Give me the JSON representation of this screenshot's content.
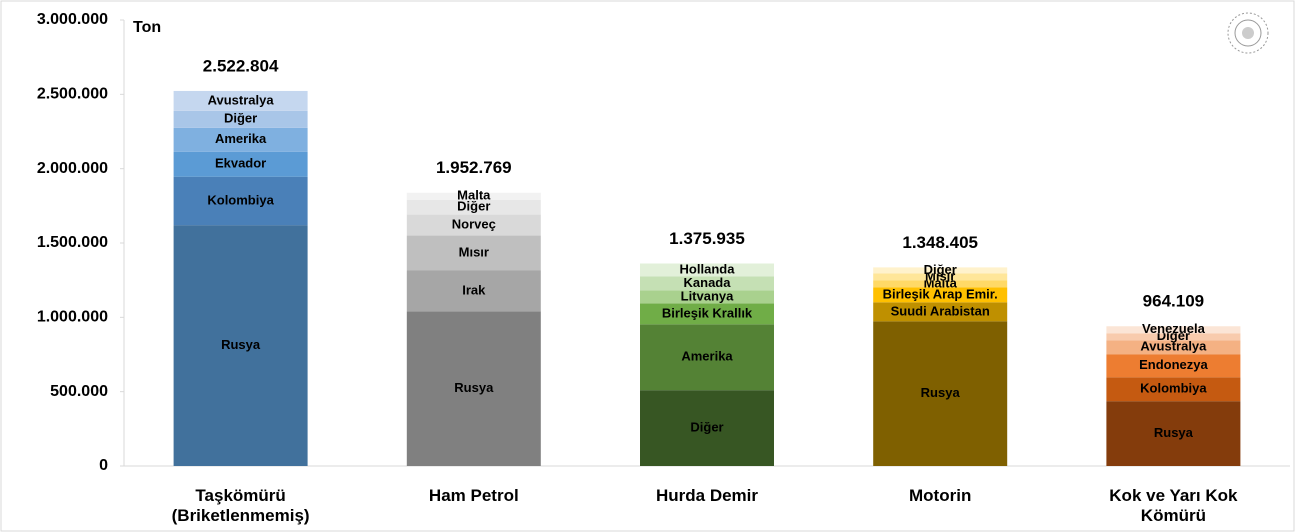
{
  "chart_data": {
    "type": "stacked_bar",
    "y_label": "Ton",
    "ylim": [
      0,
      3000000
    ],
    "yticks": [
      0,
      {
        "value": 500000,
        "label": "500.000"
      },
      {
        "value": 1000000,
        "label": "1.000.000"
      },
      {
        "value": 1500000,
        "label": "1.500.000"
      },
      {
        "value": 2000000,
        "label": "2.000.000"
      },
      {
        "value": 2500000,
        "label": "2.500.000"
      },
      {
        "value": 3000000,
        "label": "3.000.000"
      }
    ],
    "stacks": [
      {
        "category": "Taşkömürü (Briketlenmemiş)",
        "total": 2522804,
        "total_label": "2.522.804",
        "segments": [
          {
            "name": "Rusya",
            "value": 1620000,
            "color": "#41719c"
          },
          {
            "name": "Kolombiya",
            "value": 326000,
            "color": "#4a80b8"
          },
          {
            "name": "Ekvador",
            "value": 168000,
            "color": "#5b9bd5"
          },
          {
            "name": "Amerika",
            "value": 161000,
            "color": "#7fb0e0"
          },
          {
            "name": "Diğer",
            "value": 114000,
            "color": "#a9c6e8"
          },
          {
            "name": "Avustralya",
            "value": 133804,
            "color": "#c5d7ef"
          }
        ]
      },
      {
        "category": "Ham Petrol",
        "total": 1952769,
        "total_label": "1.952.769",
        "segments": [
          {
            "name": "Rusya",
            "value": 1040000,
            "color": "#808080"
          },
          {
            "name": "Irak",
            "value": 275000,
            "color": "#a6a6a6"
          },
          {
            "name": "Mısır",
            "value": 235000,
            "color": "#bfbfbf"
          },
          {
            "name": "Norveç",
            "value": 141000,
            "color": "#d9d9d9"
          },
          {
            "name": "Diğer",
            "value": 100000,
            "color": "#e7e7e7"
          },
          {
            "name": "Malta",
            "value": 47000,
            "color": "#f2f2f2"
          }
        ]
      },
      {
        "category": "Hurda Demir",
        "total": 1375935,
        "total_label": "1.375.935",
        "segments": [
          {
            "name": "Diğer",
            "value": 510000,
            "color": "#375623"
          },
          {
            "name": "Amerika",
            "value": 443000,
            "color": "#548235"
          },
          {
            "name": "Birleşik Krallık",
            "value": 141000,
            "color": "#70ad47"
          },
          {
            "name": "Litvanya",
            "value": 87000,
            "color": "#a9d18e"
          },
          {
            "name": "Kanada",
            "value": 94000,
            "color": "#c5e0b4"
          },
          {
            "name": "Hollanda",
            "value": 87000,
            "color": "#e2f0d9"
          }
        ]
      },
      {
        "category": "Motorin",
        "total": 1348405,
        "total_label": "1.348.405",
        "segments": [
          {
            "name": "Rusya",
            "value": 973000,
            "color": "#7f6000"
          },
          {
            "name": "Suudi Arabistan",
            "value": 128000,
            "color": "#bf9000"
          },
          {
            "name": "Birleşik Arap Emir.",
            "value": 100000,
            "color": "#ffc000"
          },
          {
            "name": "Malta",
            "value": 47000,
            "color": "#ffd966"
          },
          {
            "name": "Mısır",
            "value": 47000,
            "color": "#ffe699"
          },
          {
            "name": "Diğer",
            "value": 41000,
            "color": "#fff2cc"
          }
        ]
      },
      {
        "category": "Kok ve Yarı Kok Kömürü",
        "total": 964109,
        "total_label": "964.109",
        "segments": [
          {
            "name": "Rusya",
            "value": 436000,
            "color": "#843c0c"
          },
          {
            "name": "Kolombiya",
            "value": 161000,
            "color": "#c55a11"
          },
          {
            "name": "Endonezya",
            "value": 155000,
            "color": "#ed7d31"
          },
          {
            "name": "Avustralya",
            "value": 94000,
            "color": "#f4b183"
          },
          {
            "name": "Diğer",
            "value": 47000,
            "color": "#f8cbad"
          },
          {
            "name": "Venezuela",
            "value": 47000,
            "color": "#fbe5d6"
          }
        ]
      }
    ]
  }
}
